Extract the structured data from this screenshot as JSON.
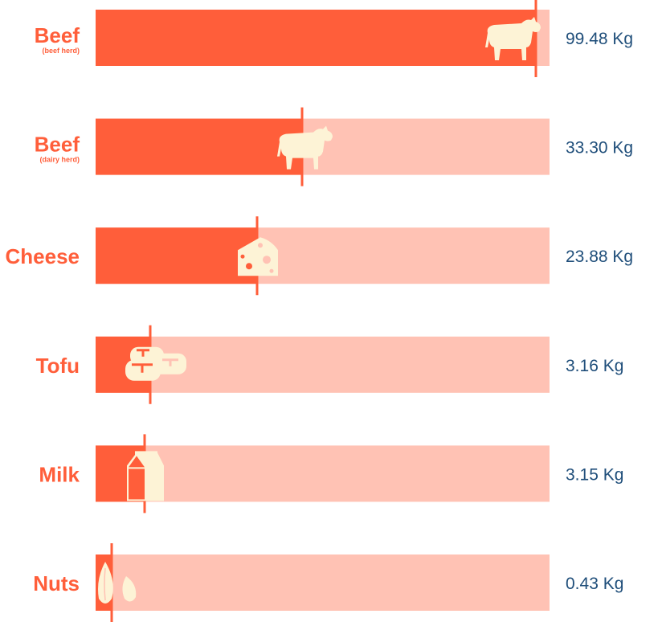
{
  "chart_data": {
    "type": "bar",
    "orientation": "horizontal",
    "unit": "Kg",
    "categories": [
      {
        "name": "Beef",
        "sub": "(beef herd)",
        "icon": "cow-icon",
        "value": 99.48,
        "label": "99.48 Kg"
      },
      {
        "name": "Beef",
        "sub": "(dairy herd)",
        "icon": "cow-icon",
        "value": 33.3,
        "label": "33.30 Kg"
      },
      {
        "name": "Cheese",
        "sub": "",
        "icon": "cheese-icon",
        "value": 23.88,
        "label": "23.88 Kg"
      },
      {
        "name": "Tofu",
        "sub": "",
        "icon": "tofu-icon",
        "value": 3.16,
        "label": "3.16 Kg"
      },
      {
        "name": "Milk",
        "sub": "",
        "icon": "milk-carton-icon",
        "value": 3.15,
        "label": "3.15 Kg"
      },
      {
        "name": "Nuts",
        "sub": "",
        "icon": "almond-icon",
        "value": 0.43,
        "label": "0.43 Kg"
      }
    ],
    "xlim": [
      0,
      100
    ],
    "grid": false,
    "legend": "none"
  },
  "colors": {
    "fill": "#ff5e3a",
    "track": "#ffc2b4",
    "label": "#ff5e3a",
    "value": "#1f4e7a",
    "icon": "#fdf3d6"
  }
}
